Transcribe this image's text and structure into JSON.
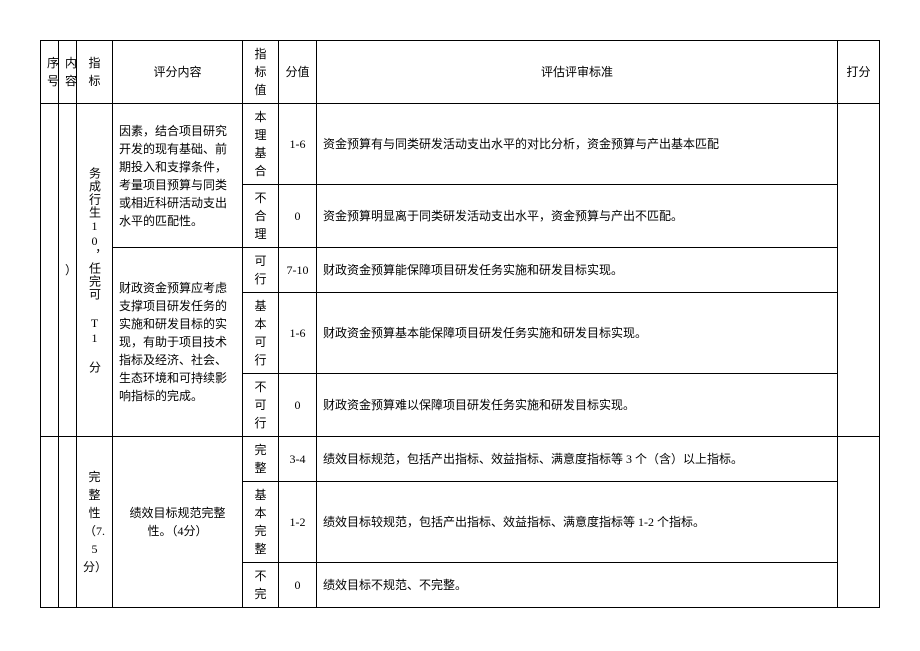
{
  "headers": {
    "seq": "序号",
    "content": "内容",
    "indicator": "指标",
    "desc": "评分内容",
    "value": "指标值",
    "score": "分值",
    "criteria": "评估评审标准",
    "mark": "打分"
  },
  "group1": {
    "content_cell": "）",
    "indicator": "务成行生10，任完可 T1 分",
    "desc1": "因素，结合项目研究开发的现有基础、前期投入和支撑条件，考量项目预算与同类或相近科研活动支出水平的匹配性。",
    "r1": {
      "val": "本理基合",
      "score": "1-6",
      "crit": "资金预算有与同类研发活动支出水平的对比分析，资金预算与产出基本匹配"
    },
    "r2": {
      "val": "不合理",
      "score": "0",
      "crit": "资金预算明显离于同类研发活动支出水平，资金预算与产出不匹配。"
    },
    "desc2": "财政资金预算应考虑支撑项目研发任务的实施和研发目标的实现，有助于项目技术指标及经济、社会、生态环境和可持续影响指标的完成。",
    "r3": {
      "val": "可行",
      "score": "7-10",
      "crit": "财政资金预算能保障项目研发任务实施和研发目标实现。"
    },
    "r4": {
      "val": "基本可行",
      "score": "1-6",
      "crit": "财政资金预算基本能保障项目研发任务实施和研发目标实现。"
    },
    "r5": {
      "val": "不可行",
      "score": "0",
      "crit": "财政资金预算难以保障项目研发任务实施和研发目标实现。"
    }
  },
  "group2": {
    "indicator": "完整性（7.5分）",
    "desc": "绩效目标规范完整性。（4分）",
    "r1": {
      "val": "完整",
      "score": "3-4",
      "crit": "绩效目标规范，包括产出指标、效益指标、满意度指标等 3 个（含）以上指标。"
    },
    "r2": {
      "val": "基本完整",
      "score": "1-2",
      "crit": "绩效目标较规范，包括产出指标、效益指标、满意度指标等 1-2 个指标。"
    },
    "r3": {
      "val": "不完",
      "score": "0",
      "crit": "绩效目标不规范、不完整。"
    }
  }
}
